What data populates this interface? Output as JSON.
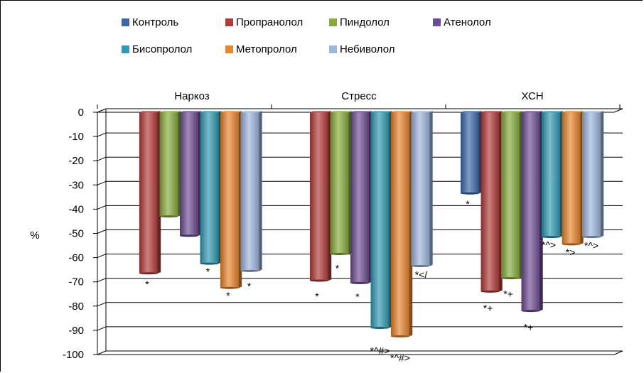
{
  "chart_data": {
    "type": "bar",
    "title": "",
    "xlabel": "",
    "ylabel": "%",
    "ylim": [
      -100,
      0
    ],
    "yticks": [
      "0",
      "-10",
      "-20",
      "-30",
      "-40",
      "-50",
      "-60",
      "-70",
      "-80",
      "-90",
      "-100"
    ],
    "categories": [
      "Наркоз",
      "Стресс",
      "ХСН"
    ],
    "legend_position": "top",
    "grid": true,
    "series": [
      {
        "name": "Контроль",
        "color": "#3a67a8",
        "values": [
          null,
          null,
          -33.5
        ],
        "annotations": [
          "",
          "",
          "*"
        ]
      },
      {
        "name": "Пропранолол",
        "color": "#b23a38",
        "values": [
          -66.5,
          -69.5,
          -74
        ],
        "annotations": [
          "*",
          "*",
          "*+"
        ]
      },
      {
        "name": "Пиндолол",
        "color": "#86ac3c",
        "values": [
          -43,
          -58.5,
          -68.5
        ],
        "annotations": [
          "",
          "*",
          "*+"
        ]
      },
      {
        "name": "Атенолол",
        "color": "#6d4c91",
        "values": [
          -51,
          -70.5,
          -82
        ],
        "annotations": [
          "",
          "*",
          "*+"
        ]
      },
      {
        "name": "Бисопролол",
        "color": "#2f9ab2",
        "values": [
          -62.5,
          -89,
          -51.5
        ],
        "annotations": [
          "*",
          "*^#>",
          "*^>"
        ]
      },
      {
        "name": "Метопролол",
        "color": "#e8842a",
        "values": [
          -72.5,
          -92.5,
          -54.5
        ],
        "annotations": [
          "*",
          "*^#>",
          "*>"
        ]
      },
      {
        "name": "Небиволол",
        "color": "#9cb5de",
        "values": [
          -65.5,
          -63.5,
          -51.5
        ],
        "annotations": [
          "*",
          "*</",
          "*^>"
        ]
      }
    ]
  }
}
